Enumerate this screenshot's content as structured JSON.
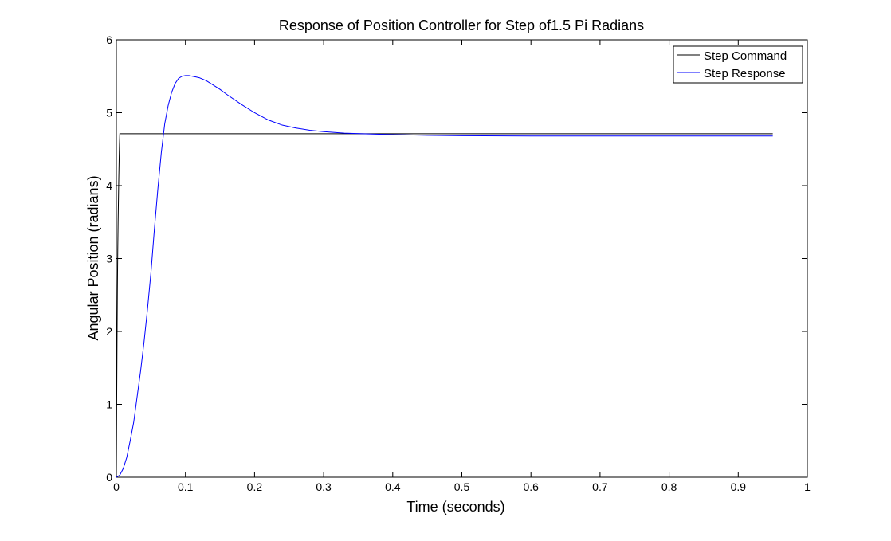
{
  "figure": {
    "background": "#ffffff"
  },
  "chart_data": {
    "type": "line",
    "title": "Response of Position Controller for Step of1.5 Pi Radians",
    "xlabel": "Time (seconds)",
    "ylabel": "Angular Position (radians)",
    "xlim": [
      0,
      1
    ],
    "ylim": [
      0,
      6
    ],
    "xticks": [
      0,
      0.1,
      0.2,
      0.3,
      0.4,
      0.5,
      0.6,
      0.7,
      0.8,
      0.9,
      1
    ],
    "xtick_labels": [
      "0",
      "0.1",
      "0.2",
      "0.3",
      "0.4",
      "0.5",
      "0.6",
      "0.7",
      "0.8",
      "0.9",
      "1"
    ],
    "yticks": [
      0,
      1,
      2,
      3,
      4,
      5,
      6
    ],
    "ytick_labels": [
      "0",
      "1",
      "2",
      "3",
      "4",
      "5",
      "6"
    ],
    "grid": false,
    "legend": "top-right",
    "series": [
      {
        "name": "Step Command",
        "color": "#000000",
        "x": [
          0,
          0.0005,
          0.001,
          0.0015,
          0.002,
          0.0025,
          0.003,
          0.0035,
          0.004,
          0.0045,
          0.005,
          0.95
        ],
        "y": [
          0,
          1.0,
          1.9,
          2.6,
          3.1,
          3.5,
          3.8,
          4.1,
          4.35,
          4.55,
          4.712,
          4.712
        ]
      },
      {
        "name": "Step Response",
        "color": "#0000ff",
        "x": [
          0,
          0.005,
          0.01,
          0.015,
          0.02,
          0.025,
          0.03,
          0.035,
          0.04,
          0.045,
          0.05,
          0.055,
          0.06,
          0.065,
          0.07,
          0.075,
          0.08,
          0.085,
          0.09,
          0.095,
          0.1,
          0.105,
          0.11,
          0.115,
          0.12,
          0.13,
          0.14,
          0.15,
          0.16,
          0.18,
          0.2,
          0.22,
          0.24,
          0.26,
          0.28,
          0.3,
          0.33,
          0.36,
          0.4,
          0.45,
          0.5,
          0.6,
          0.7,
          0.8,
          0.9,
          0.95
        ],
        "y": [
          0,
          0.03,
          0.12,
          0.27,
          0.5,
          0.75,
          1.1,
          1.45,
          1.85,
          2.3,
          2.8,
          3.4,
          3.95,
          4.45,
          4.85,
          5.1,
          5.28,
          5.4,
          5.47,
          5.5,
          5.51,
          5.51,
          5.5,
          5.49,
          5.48,
          5.44,
          5.38,
          5.32,
          5.25,
          5.12,
          5.0,
          4.9,
          4.83,
          4.79,
          4.76,
          4.74,
          4.72,
          4.71,
          4.7,
          4.69,
          4.685,
          4.68,
          4.68,
          4.68,
          4.68,
          4.68
        ]
      }
    ]
  }
}
